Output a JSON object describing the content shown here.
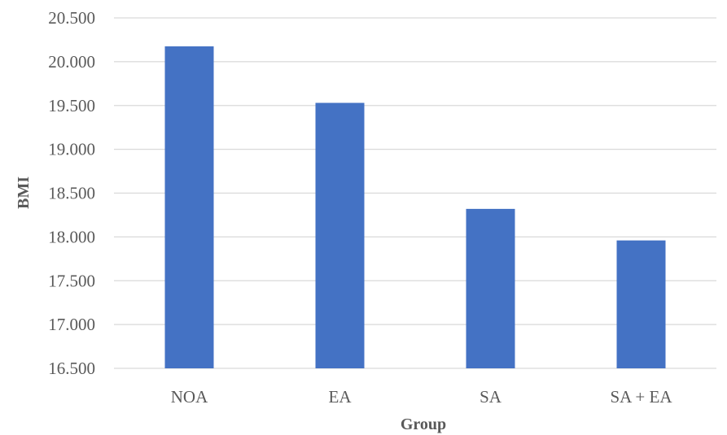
{
  "chart_data": {
    "type": "bar",
    "categories": [
      "NOA",
      "EA",
      "SA",
      "SA + EA"
    ],
    "values": [
      20.175,
      19.53,
      18.32,
      17.96
    ],
    "xlabel": "Group",
    "ylabel": "BMI",
    "ylim": [
      16.5,
      20.5
    ],
    "yticks": [
      "16.500",
      "17.000",
      "17.500",
      "18.000",
      "18.500",
      "19.000",
      "19.500",
      "20.000",
      "20.500"
    ],
    "ytick_values": [
      16.5,
      17.0,
      17.5,
      18.0,
      18.5,
      19.0,
      19.5,
      20.0,
      20.5
    ],
    "grid": true,
    "bar_color": "#4472c4"
  }
}
